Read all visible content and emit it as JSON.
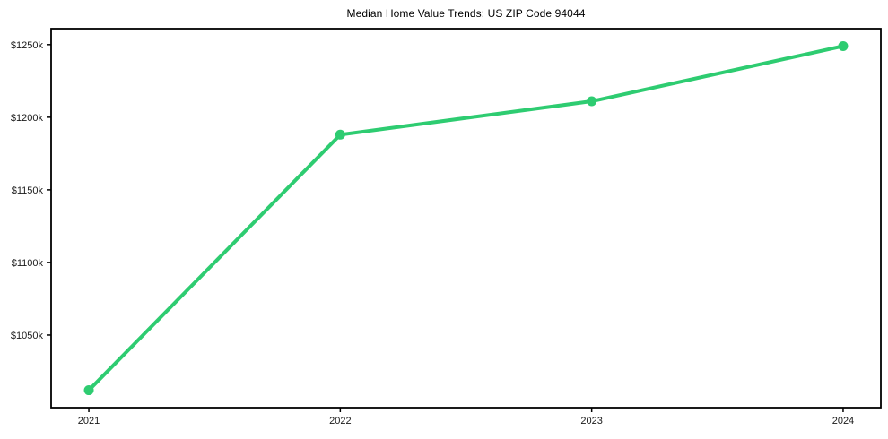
{
  "page": {
    "title": "Median Home Value Trends: US ZIP Code 94044"
  },
  "chart_data": {
    "type": "line",
    "title": "Median Home Value Trends: US ZIP Code 94044",
    "categories": [
      "2021",
      "2022",
      "2023",
      "2024"
    ],
    "series": [
      {
        "name": "median-home-value",
        "values": [
          1012,
          1188,
          1211,
          1249
        ],
        "unit": "thousand USD"
      }
    ],
    "yticks": {
      "values": [
        1050,
        1100,
        1150,
        1200,
        1250
      ],
      "labels": [
        "$1050k",
        "$1100k",
        "$1150k",
        "$1200k",
        "$1250k"
      ]
    },
    "ylim": [
      1000,
      1261
    ],
    "xlabel": "",
    "ylabel": "",
    "grid": false,
    "legend": "none",
    "colors": {
      "line": "#2ecc71",
      "marker": "#2ecc71",
      "spine": "#000000",
      "tick_text": "#1a1a1a",
      "background": "#ffffff"
    },
    "style": {
      "line_width": 4,
      "marker_radius": 5.5
    }
  }
}
